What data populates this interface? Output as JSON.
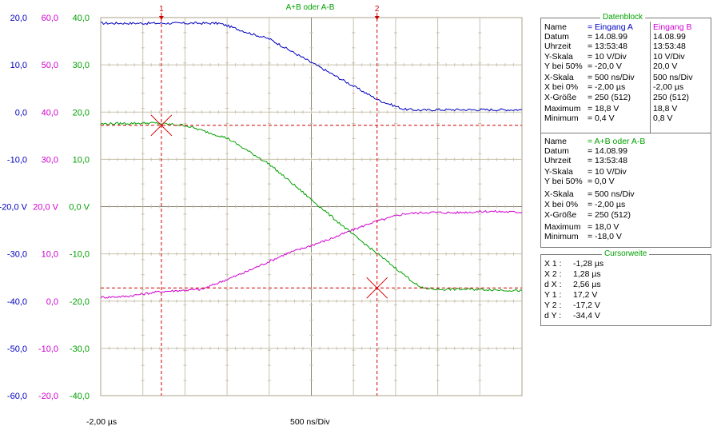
{
  "screen": {
    "title": "A+B oder A-B",
    "x_start": "-2,00 µs",
    "x_div": "500 ns/Div",
    "cursor1_label": "1",
    "cursor2_label": "2"
  },
  "chart_data": {
    "type": "line",
    "divisions": {
      "x": 10,
      "y": 8
    },
    "axis_scales": [
      {
        "color": "#0000c0",
        "ticks": [
          "20,0",
          "10,0",
          "0,0",
          "-10,0",
          "-20,0 V",
          "-30,0",
          "-40,0",
          "-50,0",
          "-60,0"
        ]
      },
      {
        "color": "#d000d0",
        "ticks": [
          "60,0",
          "50,0",
          "40,0",
          "30,0",
          "20,0 V",
          "10,0",
          "0,0",
          "-10,0",
          "-20,0"
        ]
      },
      {
        "color": "#00a000",
        "ticks": [
          "40,0",
          "30,0",
          "20,0",
          "10,0",
          "0,0 V",
          "-10,0",
          "-20,0",
          "-30,0",
          "-40,0"
        ]
      }
    ],
    "x_range_us": [
      -2.0,
      3.0
    ],
    "series": [
      {
        "name": "Eingang A",
        "color": "#0000c0",
        "axis": 0,
        "x": [
          -2.0,
          -0.6,
          -0.5,
          -0.2,
          0.0,
          0.3,
          0.6,
          1.0,
          1.3,
          1.6,
          1.8,
          2.0,
          2.6,
          3.0
        ],
        "y": [
          18.8,
          18.8,
          18.3,
          16.5,
          15.5,
          12.5,
          9.5,
          5.5,
          2.5,
          0.6,
          0.4,
          0.5,
          0.5,
          0.5
        ]
      },
      {
        "name": "Eingang B",
        "color": "#d000d0",
        "axis": 1,
        "x": [
          -2.0,
          -1.7,
          -1.3,
          -0.8,
          -0.3,
          0.2,
          0.7,
          1.2,
          1.6,
          1.9,
          2.2,
          2.6,
          3.0
        ],
        "y": [
          0.8,
          1.0,
          2.0,
          2.5,
          6.0,
          10.0,
          13.0,
          16.5,
          18.5,
          18.8,
          18.7,
          19.0,
          18.8
        ]
      },
      {
        "name": "A+B oder A-B",
        "color": "#00a000",
        "axis": 2,
        "x": [
          -2.0,
          -1.4,
          -1.0,
          -0.5,
          0.0,
          0.5,
          1.0,
          1.5,
          1.8,
          2.0,
          2.5,
          3.0
        ],
        "y": [
          17.5,
          17.7,
          17.2,
          14.5,
          9.0,
          1.5,
          -6.0,
          -13.0,
          -17.2,
          -17.5,
          -17.5,
          -17.8
        ]
      }
    ],
    "cursors": [
      {
        "label": "1",
        "x": -1.28,
        "y": 17.2
      },
      {
        "label": "2",
        "x": 1.28,
        "y": -17.2
      }
    ]
  },
  "datenblock": {
    "title": "Datenblock",
    "labels": [
      "Name",
      "Datum",
      "Uhrzeit",
      "Y-Skala",
      "Y bei 50%",
      "X-Skala",
      "X bei 0%",
      "X-Größe",
      "Maximum",
      "Minimum"
    ],
    "colA": [
      "= Eingang A",
      "= 14.08.99",
      "= 13:53:48",
      "=   10    V/Div",
      "=  -20,0  V",
      "=  500    ns/Div",
      "=  -2,00 µs",
      "=  250 (512)",
      "=   18,8  V",
      "=    0,4  V"
    ],
    "colB": [
      "Eingang B",
      "14.08.99",
      "13:53:48",
      "10    V/Div",
      "20,0  V",
      "500    ns/Div",
      "-2,00 µs",
      "250 (512)",
      "18,8  V",
      "0,8  V"
    ],
    "labels2": [
      "Name",
      "Datum",
      "Uhrzeit",
      "Y-Skala",
      "Y bei 50%",
      "X-Skala",
      "X bei 0%",
      "X-Größe",
      "Maximum",
      "Minimum"
    ],
    "colC": [
      "= A+B oder A-B",
      "= 14.08.99",
      "= 13:53:48",
      "=   10    V/Div",
      "=    0,0  V",
      "=  500    ns/Div",
      "=  -2,00 µs",
      "=  250 (512)",
      "=   18,0  V",
      "=  -18,0  V"
    ]
  },
  "cursorweite": {
    "title": "Cursorweite",
    "rows": [
      {
        "label": "X 1 :",
        "value": "-1,28 µs"
      },
      {
        "label": "X 2 :",
        "value": "1,28 µs"
      },
      {
        "label": "d X :",
        "value": "2,56 µs"
      },
      {
        "label": "Y 1 :",
        "value": "17,2  V"
      },
      {
        "label": "Y 2 :",
        "value": "-17,2  V"
      },
      {
        "label": "d Y :",
        "value": "-34,4  V"
      }
    ]
  }
}
